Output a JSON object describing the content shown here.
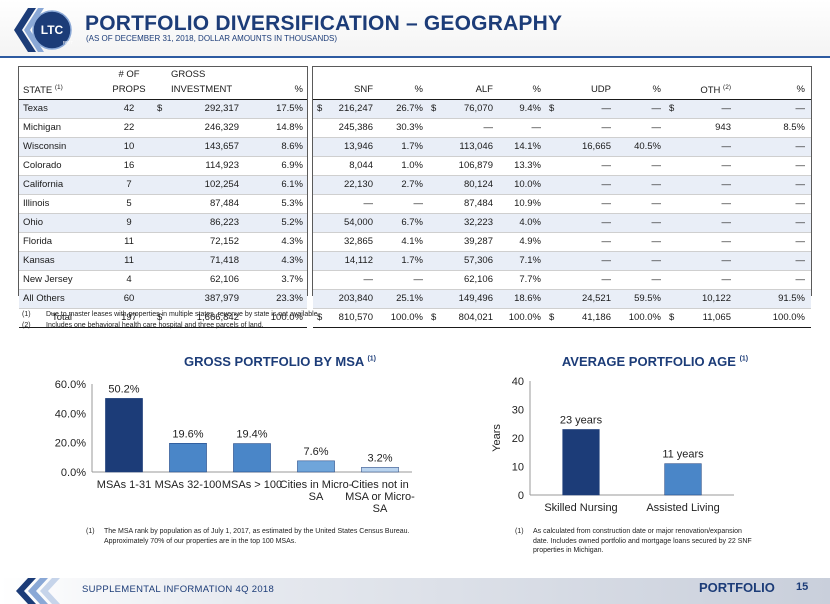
{
  "header": {
    "logo_text": "LTC",
    "logo_subtext": "REIT",
    "title": "PORTFOLIO DIVERSIFICATION – GEOGRAPHY",
    "subtitle": "(AS OF DECEMBER 31, 2018, DOLLAR AMOUNTS IN THOUSANDS)"
  },
  "table": {
    "headers": {
      "state": "STATE",
      "state_sup": "(1)",
      "props_top": "# OF",
      "props_bottom": "PROPS",
      "gross_top": "GROSS",
      "gross_bottom": "INVESTMENT",
      "pct": "%",
      "snf": "SNF",
      "alf": "ALF",
      "udp": "UDP",
      "oth": "OTH",
      "oth_sup": "(2)"
    },
    "rows": [
      {
        "state": "Texas",
        "props": "42",
        "gross_cur": "$",
        "gross": "292,317",
        "gross_pct": "17.5%",
        "snf_cur": "$",
        "snf": "216,247",
        "snf_pct": "26.7%",
        "alf_cur": "$",
        "alf": "76,070",
        "alf_pct": "9.4%",
        "udp_cur": "$",
        "udp": "—",
        "udp_pct": "—",
        "oth_cur": "$",
        "oth": "—",
        "oth_pct": "—"
      },
      {
        "state": "Michigan",
        "props": "22",
        "gross_cur": "",
        "gross": "246,329",
        "gross_pct": "14.8%",
        "snf_cur": "",
        "snf": "245,386",
        "snf_pct": "30.3%",
        "alf_cur": "",
        "alf": "—",
        "alf_pct": "—",
        "udp_cur": "",
        "udp": "—",
        "udp_pct": "—",
        "oth_cur": "",
        "oth": "943",
        "oth_pct": "8.5%"
      },
      {
        "state": "Wisconsin",
        "props": "10",
        "gross_cur": "",
        "gross": "143,657",
        "gross_pct": "8.6%",
        "snf_cur": "",
        "snf": "13,946",
        "snf_pct": "1.7%",
        "alf_cur": "",
        "alf": "113,046",
        "alf_pct": "14.1%",
        "udp_cur": "",
        "udp": "16,665",
        "udp_pct": "40.5%",
        "oth_cur": "",
        "oth": "—",
        "oth_pct": "—"
      },
      {
        "state": "Colorado",
        "props": "16",
        "gross_cur": "",
        "gross": "114,923",
        "gross_pct": "6.9%",
        "snf_cur": "",
        "snf": "8,044",
        "snf_pct": "1.0%",
        "alf_cur": "",
        "alf": "106,879",
        "alf_pct": "13.3%",
        "udp_cur": "",
        "udp": "—",
        "udp_pct": "—",
        "oth_cur": "",
        "oth": "—",
        "oth_pct": "—"
      },
      {
        "state": "California",
        "props": "7",
        "gross_cur": "",
        "gross": "102,254",
        "gross_pct": "6.1%",
        "snf_cur": "",
        "snf": "22,130",
        "snf_pct": "2.7%",
        "alf_cur": "",
        "alf": "80,124",
        "alf_pct": "10.0%",
        "udp_cur": "",
        "udp": "—",
        "udp_pct": "—",
        "oth_cur": "",
        "oth": "—",
        "oth_pct": "—"
      },
      {
        "state": "Illinois",
        "props": "5",
        "gross_cur": "",
        "gross": "87,484",
        "gross_pct": "5.3%",
        "snf_cur": "",
        "snf": "—",
        "snf_pct": "—",
        "alf_cur": "",
        "alf": "87,484",
        "alf_pct": "10.9%",
        "udp_cur": "",
        "udp": "—",
        "udp_pct": "—",
        "oth_cur": "",
        "oth": "—",
        "oth_pct": "—"
      },
      {
        "state": "Ohio",
        "props": "9",
        "gross_cur": "",
        "gross": "86,223",
        "gross_pct": "5.2%",
        "snf_cur": "",
        "snf": "54,000",
        "snf_pct": "6.7%",
        "alf_cur": "",
        "alf": "32,223",
        "alf_pct": "4.0%",
        "udp_cur": "",
        "udp": "—",
        "udp_pct": "—",
        "oth_cur": "",
        "oth": "—",
        "oth_pct": "—"
      },
      {
        "state": "Florida",
        "props": "11",
        "gross_cur": "",
        "gross": "72,152",
        "gross_pct": "4.3%",
        "snf_cur": "",
        "snf": "32,865",
        "snf_pct": "4.1%",
        "alf_cur": "",
        "alf": "39,287",
        "alf_pct": "4.9%",
        "udp_cur": "",
        "udp": "—",
        "udp_pct": "—",
        "oth_cur": "",
        "oth": "—",
        "oth_pct": "—"
      },
      {
        "state": "Kansas",
        "props": "11",
        "gross_cur": "",
        "gross": "71,418",
        "gross_pct": "4.3%",
        "snf_cur": "",
        "snf": "14,112",
        "snf_pct": "1.7%",
        "alf_cur": "",
        "alf": "57,306",
        "alf_pct": "7.1%",
        "udp_cur": "",
        "udp": "—",
        "udp_pct": "—",
        "oth_cur": "",
        "oth": "—",
        "oth_pct": "—"
      },
      {
        "state": "New Jersey",
        "props": "4",
        "gross_cur": "",
        "gross": "62,106",
        "gross_pct": "3.7%",
        "snf_cur": "",
        "snf": "—",
        "snf_pct": "—",
        "alf_cur": "",
        "alf": "62,106",
        "alf_pct": "7.7%",
        "udp_cur": "",
        "udp": "—",
        "udp_pct": "—",
        "oth_cur": "",
        "oth": "—",
        "oth_pct": "—"
      },
      {
        "state": "All Others",
        "props": "60",
        "gross_cur": "",
        "gross": "387,979",
        "gross_pct": "23.3%",
        "snf_cur": "",
        "snf": "203,840",
        "snf_pct": "25.1%",
        "alf_cur": "",
        "alf": "149,496",
        "alf_pct": "18.6%",
        "udp_cur": "",
        "udp": "24,521",
        "udp_pct": "59.5%",
        "oth_cur": "",
        "oth": "10,122",
        "oth_pct": "91.5%"
      }
    ],
    "total": {
      "state": "Total",
      "props": "197",
      "gross_cur": "$",
      "gross": "1,666,842",
      "gross_pct": "100.0%",
      "snf_cur": "$",
      "snf": "810,570",
      "snf_pct": "100.0%",
      "alf_cur": "$",
      "alf": "804,021",
      "alf_pct": "100.0%",
      "udp_cur": "$",
      "udp": "41,186",
      "udp_pct": "100.0%",
      "oth_cur": "$",
      "oth": "11,065",
      "oth_pct": "100.0%"
    }
  },
  "table_footnotes": [
    {
      "num": "(1)",
      "text": "Due to master leases with properties in multiple states, revenue by state is not available."
    },
    {
      "num": "(2)",
      "text": "Includes one behavioral health care hospital and three parcels of land."
    }
  ],
  "msa_section": {
    "title": "GROSS PORTFOLIO BY MSA",
    "title_sup": "(1)",
    "footnote_num": "(1)",
    "footnote_lines": [
      "The MSA rank by population as of July 1, 2017, as estimated by the United States Census Bureau.",
      "Approximately 70% of our properties are in the top 100 MSAs."
    ]
  },
  "age_section": {
    "title": "AVERAGE PORTFOLIO AGE",
    "title_sup": "(1)",
    "footnote_num": "(1)",
    "footnote_lines": [
      "As calculated from construction date or major renovation/expansion",
      "date.  Includes owned portfolio and mortgage loans secured by 22 SNF",
      "properties in Michigan."
    ]
  },
  "chart_data": [
    {
      "type": "bar",
      "categories": [
        [
          "MSAs 1-31"
        ],
        [
          "MSAs 32-100"
        ],
        [
          "MSAs > 100"
        ],
        [
          "Cities in Micro-",
          "SA"
        ],
        [
          "Cities not in",
          "MSA or Micro-",
          "SA"
        ]
      ],
      "values": [
        50.2,
        19.6,
        19.4,
        7.6,
        3.2
      ],
      "data_labels": [
        "50.2%",
        "19.6%",
        "19.4%",
        "7.6%",
        "3.2%"
      ],
      "yticks": [
        "0.0%",
        "20.0%",
        "40.0%",
        "60.0%"
      ],
      "ylim": [
        0,
        60
      ],
      "xlabel": "",
      "ylabel": "",
      "grid": false,
      "bar_colors": [
        "#1c3c78",
        "#4a86c8",
        "#4a86c8",
        "#6fa5da",
        "#b9d3ee"
      ]
    },
    {
      "type": "bar",
      "categories": [
        [
          "Skilled Nursing"
        ],
        [
          "Assisted Living"
        ]
      ],
      "values": [
        23,
        11
      ],
      "data_labels": [
        "23 years",
        "11 years"
      ],
      "yticks": [
        "0",
        "10",
        "20",
        "30",
        "40"
      ],
      "ylim": [
        0,
        40
      ],
      "xlabel": "",
      "ylabel": "Years",
      "grid": false,
      "bar_colors": [
        "#1c3c78",
        "#4a86c8"
      ]
    }
  ],
  "footer": {
    "text": "SUPPLEMENTAL INFORMATION  4Q 2018",
    "section_label": "PORTFOLIO",
    "page_number": "15"
  }
}
